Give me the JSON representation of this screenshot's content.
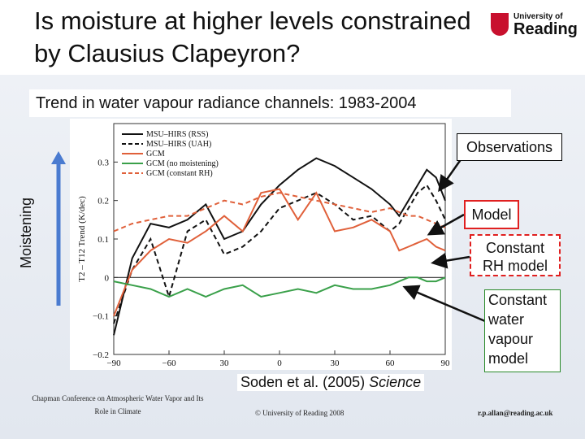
{
  "header": {
    "title": "Is moisture at higher levels constrained by Clausius Clapeyron?",
    "logo_line1": "University of",
    "logo_line2": "Reading",
    "logo_color": "#c8102e"
  },
  "subtitle": "Trend in water vapour radiance channels: 1983-2004",
  "axis_arrow_label": "Moistening",
  "callouts": {
    "observations": "Observations",
    "model": "Model",
    "constant_rh": [
      "Constant",
      "RH model"
    ],
    "constant_wv": [
      "Constant",
      "water",
      "vapour",
      "model"
    ]
  },
  "citation": {
    "text": "Soden et al. (2005) ",
    "journal": "Science"
  },
  "footer": {
    "left_line1": "Chapman Conference on Atmospheric Water Vapor and Its",
    "left_line2": "Role in Climate",
    "center": "© University of Reading 2008",
    "right": "r.p.allan@reading.ac.uk"
  },
  "chart_data": {
    "type": "line",
    "ylabel": "T2 – T12 Trend (K/dec)",
    "xlabel": "",
    "xlim": [
      -90,
      90
    ],
    "ylim": [
      -0.2,
      0.4
    ],
    "xticks": [
      -90,
      -60,
      30,
      0,
      30,
      60,
      90
    ],
    "xtick_labels": [
      "−90",
      "−60",
      "30",
      "0",
      "30",
      "60",
      "90"
    ],
    "yticks": [
      -0.2,
      -0.1,
      0,
      0.1,
      0.2,
      0.3
    ],
    "ytick_labels": [
      "−0.2",
      "−0.1",
      "0",
      "0.1",
      "0.2",
      "0.3"
    ],
    "legend_position": "top-left",
    "x": [
      -90,
      -80,
      -70,
      -60,
      -50,
      -40,
      -30,
      -20,
      -10,
      0,
      10,
      20,
      30,
      40,
      50,
      60,
      65,
      70,
      75,
      80,
      85,
      90
    ],
    "series": [
      {
        "name": "MSU–HIRS (RSS)",
        "color": "#111111",
        "dash": false,
        "values": [
          -0.15,
          0.05,
          0.14,
          0.13,
          0.15,
          0.19,
          0.1,
          0.12,
          0.19,
          0.24,
          0.28,
          0.31,
          0.29,
          0.26,
          0.23,
          0.19,
          0.16,
          0.2,
          0.24,
          0.28,
          0.26,
          0.2
        ]
      },
      {
        "name": "MSU–HIRS (UAH)",
        "color": "#111111",
        "dash": true,
        "values": [
          -0.12,
          0.02,
          0.1,
          -0.05,
          0.12,
          0.15,
          0.06,
          0.08,
          0.12,
          0.18,
          0.2,
          0.22,
          0.19,
          0.15,
          0.16,
          0.12,
          0.14,
          0.18,
          0.22,
          0.24,
          0.2,
          0.15
        ]
      },
      {
        "name": "GCM",
        "color": "#e0603a",
        "dash": false,
        "values": [
          -0.1,
          0.02,
          0.07,
          0.1,
          0.09,
          0.12,
          0.16,
          0.12,
          0.22,
          0.23,
          0.15,
          0.22,
          0.12,
          0.13,
          0.15,
          0.12,
          0.07,
          0.08,
          0.09,
          0.1,
          0.08,
          0.07
        ]
      },
      {
        "name": "GCM (no moistening)",
        "color": "#3aa04a",
        "dash": false,
        "values": [
          -0.01,
          -0.02,
          -0.03,
          -0.05,
          -0.03,
          -0.05,
          -0.03,
          -0.02,
          -0.05,
          -0.04,
          -0.03,
          -0.04,
          -0.02,
          -0.03,
          -0.03,
          -0.02,
          -0.01,
          0.0,
          0.0,
          -0.01,
          -0.01,
          0.0
        ]
      },
      {
        "name": "GCM (constant RH)",
        "color": "#e0603a",
        "dash": true,
        "values": [
          0.12,
          0.14,
          0.15,
          0.16,
          0.16,
          0.18,
          0.2,
          0.19,
          0.21,
          0.22,
          0.21,
          0.2,
          0.19,
          0.18,
          0.17,
          0.18,
          0.17,
          0.16,
          0.16,
          0.15,
          0.14,
          0.13
        ]
      }
    ]
  }
}
